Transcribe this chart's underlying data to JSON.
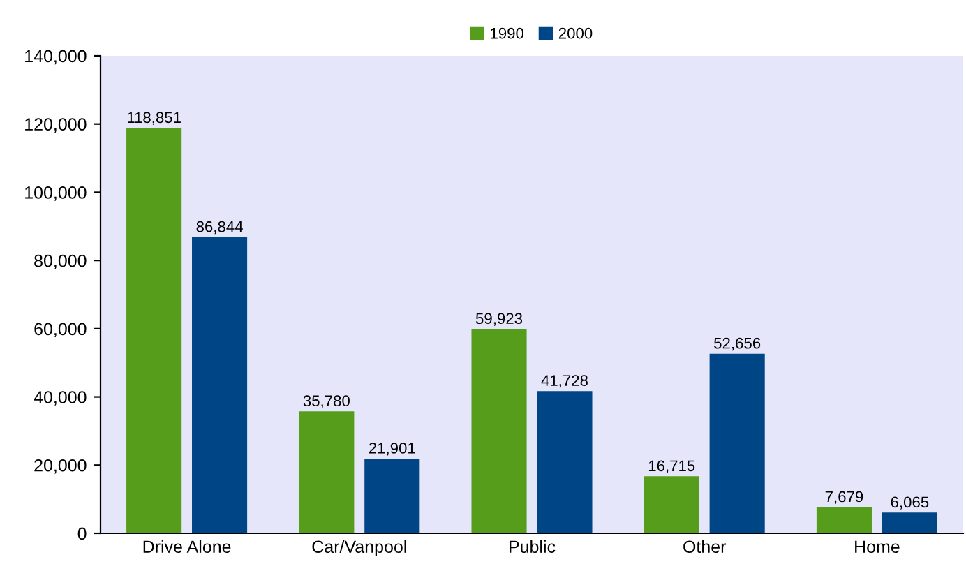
{
  "chart_data": {
    "type": "bar",
    "categories": [
      "Drive Alone",
      "Car/Vanpool",
      "Public",
      "Other",
      "Home"
    ],
    "series": [
      {
        "name": "1990",
        "color": "#579d1c",
        "values": [
          118851,
          35780,
          59923,
          16715,
          7679
        ],
        "value_labels": [
          "118,851",
          "35,780",
          "59,923",
          "16,715",
          "7,679"
        ]
      },
      {
        "name": "2000",
        "color": "#004586",
        "values": [
          86844,
          21901,
          41728,
          52656,
          6065
        ],
        "value_labels": [
          "86,844",
          "21,901",
          "41,728",
          "52,656",
          "6,065"
        ]
      }
    ],
    "ylim": [
      0,
      140000
    ],
    "yticks": [
      {
        "value": 0,
        "label": "0"
      },
      {
        "value": 20000,
        "label": "20,000"
      },
      {
        "value": 40000,
        "label": "40,000"
      },
      {
        "value": 60000,
        "label": "60,000"
      },
      {
        "value": 80000,
        "label": "80,000"
      },
      {
        "value": 100000,
        "label": "100,000"
      },
      {
        "value": 120000,
        "label": "120,000"
      },
      {
        "value": 140000,
        "label": "140,000"
      }
    ],
    "legend": "top",
    "grid": false
  }
}
